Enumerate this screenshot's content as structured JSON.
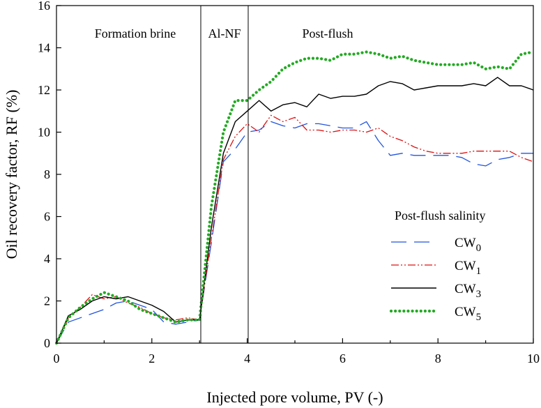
{
  "chart_data": {
    "type": "line",
    "title": "",
    "xlabel": "Injected pore volume, PV (-)",
    "ylabel": "Oil recovery factor, RF (%)",
    "xlim": [
      0,
      10
    ],
    "ylim": [
      0,
      16
    ],
    "xticks": [
      "0",
      "2",
      "4",
      "6",
      "8",
      "10"
    ],
    "yticks": [
      "0",
      "2",
      "4",
      "6",
      "8",
      "10",
      "12",
      "14",
      "16"
    ],
    "grid": false,
    "legend_position": "lower-right",
    "legend_title": "Post-flush salinity",
    "regions": [
      {
        "label": "Formation brine",
        "start": 0,
        "end": 3
      },
      {
        "label": "Al-NF",
        "start": 3,
        "end": 4
      },
      {
        "label": "Post-flush",
        "start": 4,
        "end": 10
      }
    ],
    "dividers": [
      3,
      4
    ],
    "series": [
      {
        "name": "CW",
        "subscript": "0",
        "color": "#2255dd",
        "style": "long-dash",
        "x": [
          0,
          0.25,
          0.5,
          0.75,
          1.0,
          1.25,
          1.5,
          1.75,
          2.0,
          2.25,
          2.5,
          2.75,
          3.0,
          3.25,
          3.5,
          3.75,
          4.0,
          4.25,
          4.5,
          4.75,
          5.0,
          5.25,
          5.5,
          5.75,
          6.0,
          6.25,
          6.5,
          6.75,
          7.0,
          7.25,
          7.5,
          7.75,
          8.0,
          8.25,
          8.5,
          8.75,
          9.0,
          9.25,
          9.5,
          9.75,
          10.0
        ],
        "y": [
          0,
          1.0,
          1.2,
          1.4,
          1.6,
          1.9,
          2.0,
          1.8,
          1.6,
          1.0,
          0.9,
          1.0,
          1.1,
          4.8,
          8.6,
          9.2,
          10.0,
          10.1,
          10.5,
          10.3,
          10.2,
          10.4,
          10.4,
          10.3,
          10.2,
          10.2,
          10.5,
          9.6,
          8.9,
          9.0,
          8.9,
          8.9,
          8.9,
          8.9,
          8.8,
          8.5,
          8.4,
          8.7,
          8.8,
          9.0,
          9.0
        ]
      },
      {
        "name": "CW",
        "subscript": "1",
        "color": "#dd1111",
        "style": "dash-dot-dot",
        "x": [
          0,
          0.25,
          0.5,
          0.75,
          1.0,
          1.25,
          1.5,
          1.75,
          2.0,
          2.25,
          2.5,
          2.75,
          3.0,
          3.25,
          3.5,
          3.75,
          4.0,
          4.25,
          4.5,
          4.75,
          5.0,
          5.25,
          5.5,
          5.75,
          6.0,
          6.25,
          6.5,
          6.75,
          7.0,
          7.25,
          7.5,
          7.75,
          8.0,
          8.25,
          8.5,
          8.75,
          9.0,
          9.25,
          9.5,
          9.75,
          10.0
        ],
        "y": [
          0,
          1.2,
          1.7,
          2.3,
          2.1,
          2.2,
          1.9,
          1.7,
          1.4,
          1.2,
          1.1,
          1.2,
          1.1,
          5.0,
          8.7,
          9.8,
          10.4,
          10.0,
          10.8,
          10.5,
          10.7,
          10.1,
          10.1,
          10.0,
          10.1,
          10.1,
          10.0,
          10.2,
          9.8,
          9.6,
          9.3,
          9.1,
          9.0,
          9.0,
          9.0,
          9.1,
          9.1,
          9.1,
          9.1,
          8.8,
          8.6
        ]
      },
      {
        "name": "CW",
        "subscript": "3",
        "color": "#000000",
        "style": "solid",
        "x": [
          0,
          0.25,
          0.5,
          0.75,
          1.0,
          1.25,
          1.5,
          1.75,
          2.0,
          2.25,
          2.5,
          2.75,
          3.0,
          3.25,
          3.5,
          3.75,
          4.0,
          4.25,
          4.5,
          4.75,
          5.0,
          5.25,
          5.5,
          5.75,
          6.0,
          6.25,
          6.5,
          6.75,
          7.0,
          7.25,
          7.5,
          7.75,
          8.0,
          8.25,
          8.5,
          8.75,
          9.0,
          9.25,
          9.5,
          9.75,
          10.0
        ],
        "y": [
          0,
          1.3,
          1.6,
          2.0,
          2.2,
          2.1,
          2.2,
          2.0,
          1.8,
          1.5,
          1.0,
          1.1,
          1.1,
          5.5,
          9.0,
          10.5,
          11.0,
          11.5,
          11.0,
          11.3,
          11.4,
          11.2,
          11.8,
          11.6,
          11.7,
          11.7,
          11.8,
          12.2,
          12.4,
          12.3,
          12.0,
          12.1,
          12.2,
          12.2,
          12.2,
          12.3,
          12.2,
          12.6,
          12.2,
          12.2,
          12.0
        ]
      },
      {
        "name": "CW",
        "subscript": "5",
        "color": "#22aa22",
        "style": "dotted",
        "x": [
          0,
          0.25,
          0.5,
          0.75,
          1.0,
          1.25,
          1.5,
          1.75,
          2.0,
          2.25,
          2.5,
          2.75,
          3.0,
          3.25,
          3.5,
          3.75,
          4.0,
          4.25,
          4.5,
          4.75,
          5.0,
          5.25,
          5.5,
          5.75,
          6.0,
          6.25,
          6.5,
          6.75,
          7.0,
          7.25,
          7.5,
          7.75,
          8.0,
          8.25,
          8.5,
          8.75,
          9.0,
          9.25,
          9.5,
          9.75,
          10.0
        ],
        "y": [
          0,
          1.2,
          1.7,
          2.1,
          2.4,
          2.2,
          2.0,
          1.6,
          1.4,
          1.2,
          1.0,
          1.1,
          1.1,
          6.5,
          10.0,
          11.5,
          11.5,
          12.0,
          12.4,
          13.0,
          13.3,
          13.5,
          13.5,
          13.4,
          13.7,
          13.7,
          13.8,
          13.7,
          13.5,
          13.6,
          13.4,
          13.3,
          13.2,
          13.2,
          13.2,
          13.3,
          13.0,
          13.1,
          13.0,
          13.7,
          13.8
        ]
      }
    ]
  }
}
